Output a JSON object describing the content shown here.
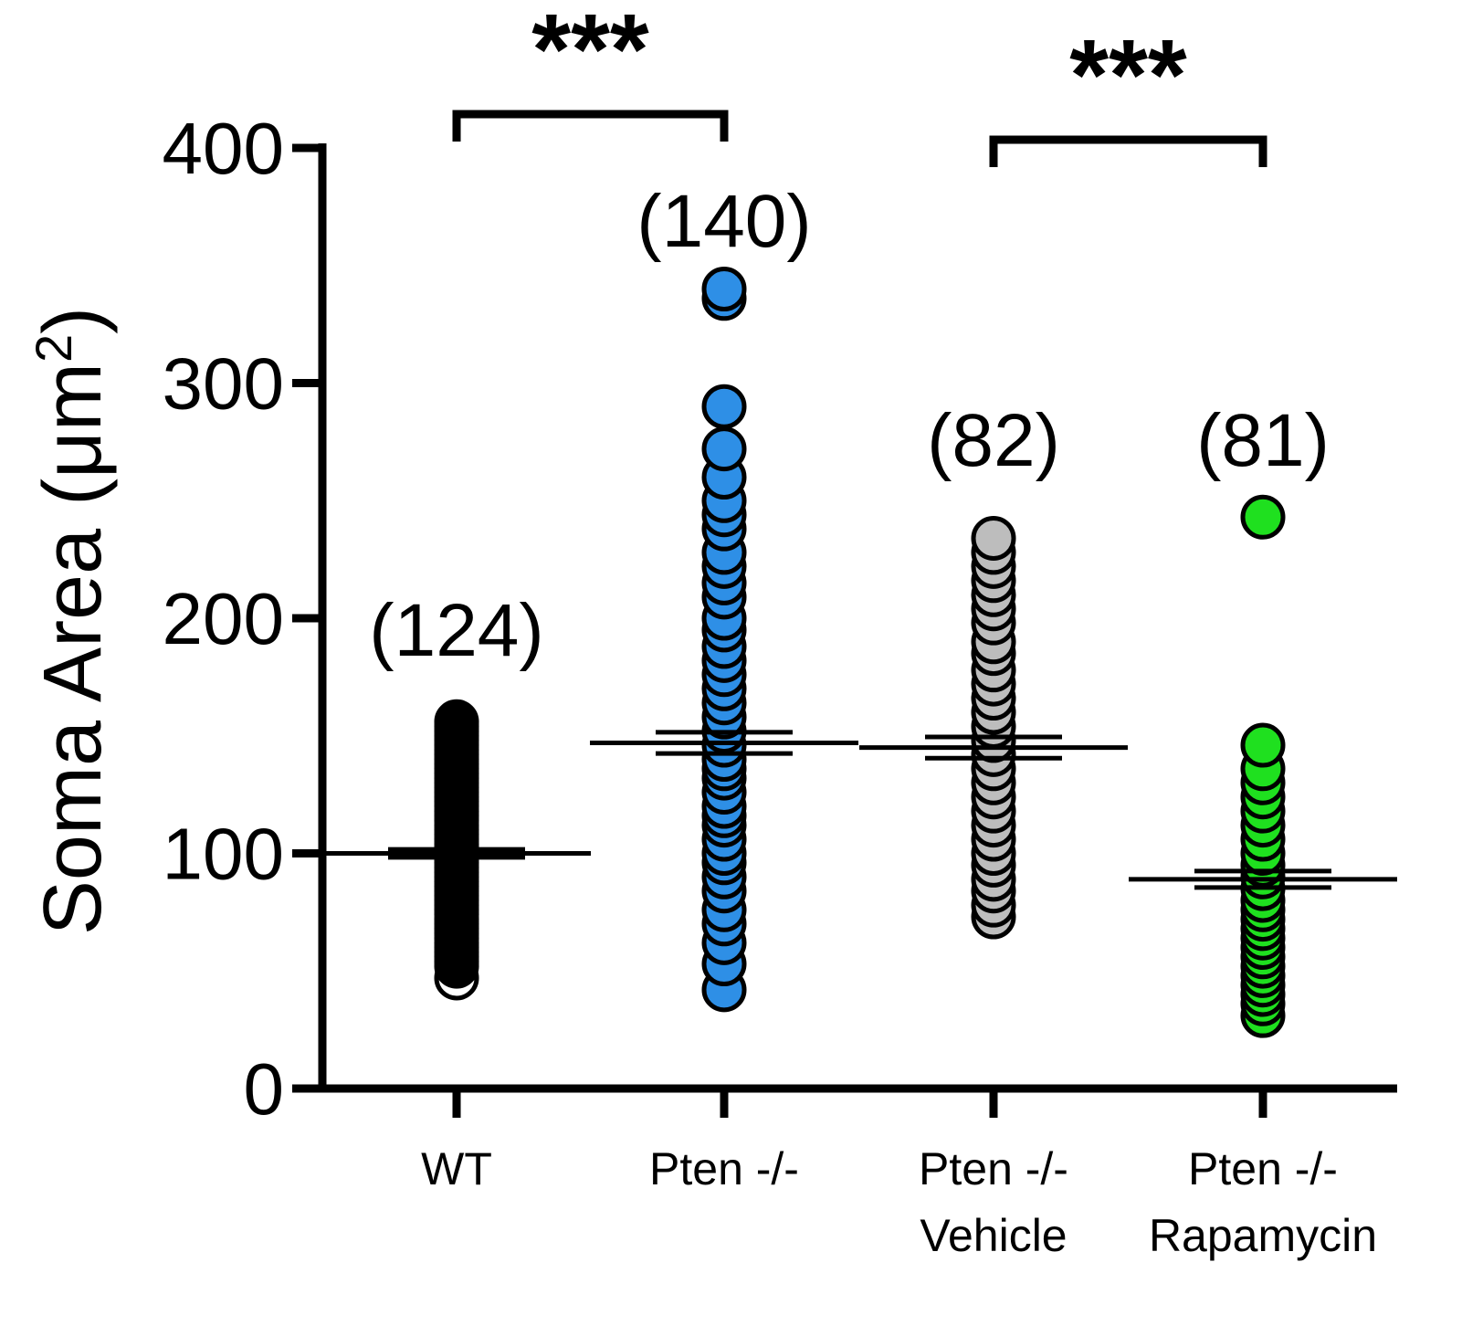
{
  "chart_data": {
    "type": "scatter",
    "subtype": "dot-plot-with-mean-sem",
    "ylabel": "Soma Area (μm",
    "ylabel_sup": "2",
    "ylabel_close": ")",
    "ylim": [
      0,
      400
    ],
    "yticks": [
      0,
      100,
      200,
      300,
      400
    ],
    "ytick_labels": [
      "0",
      "100",
      "200",
      "300",
      "400"
    ],
    "groups": [
      {
        "key": "wt",
        "label_lines": [
          "WT"
        ],
        "n_label": "(124)",
        "fill": "#000000",
        "mean": 100,
        "sem": 1.7,
        "points": [
          47,
          52,
          54,
          56,
          58,
          60,
          62,
          64,
          66,
          68,
          70,
          72,
          74,
          76,
          78,
          80,
          82,
          84,
          86,
          88,
          90,
          92,
          94,
          96,
          98,
          100,
          102,
          104,
          106,
          108,
          110,
          112,
          114,
          116,
          118,
          120,
          122,
          124,
          126,
          128,
          130,
          132,
          134,
          136,
          138,
          140,
          142,
          144,
          146,
          148,
          150,
          152,
          154,
          156
        ]
      },
      {
        "key": "pten",
        "label_lines": [
          "Pten -/-"
        ],
        "n_label": "(140)",
        "fill": "#2e8fe6",
        "mean": 147,
        "sem": 4.5,
        "points": [
          42,
          53,
          62,
          70,
          76,
          84,
          90,
          96,
          100,
          106,
          112,
          116,
          120,
          126,
          132,
          136,
          140,
          146,
          152,
          158,
          164,
          170,
          176,
          182,
          188,
          195,
          200,
          209,
          215,
          222,
          228,
          238,
          244,
          250,
          260,
          272,
          290,
          336,
          340
        ]
      },
      {
        "key": "vehicle",
        "label_lines": [
          "Pten -/-",
          "Vehicle"
        ],
        "n_label": "(82)",
        "fill": "#bdbdbd",
        "mean": 145,
        "sem": 4.5,
        "points": [
          73,
          78,
          84,
          89,
          95,
          100,
          106,
          112,
          118,
          124,
          130,
          136,
          142,
          148,
          154,
          160,
          166,
          172,
          178,
          185,
          190,
          198,
          204,
          210,
          216,
          222,
          228,
          234
        ]
      },
      {
        "key": "rapamycin",
        "label_lines": [
          "Pten -/-",
          "Rapamycin"
        ],
        "n_label": "(81)",
        "fill": "#1fe01f",
        "mean": 89,
        "sem": 3.5,
        "points": [
          31,
          36,
          40,
          44,
          48,
          52,
          56,
          60,
          64,
          68,
          72,
          76,
          80,
          85,
          90,
          95,
          100,
          106,
          112,
          118,
          124,
          130,
          136,
          146,
          243
        ]
      }
    ],
    "significance": [
      {
        "from": 0,
        "to": 1,
        "label": "***"
      },
      {
        "from": 2,
        "to": 3,
        "label": "***"
      }
    ]
  }
}
